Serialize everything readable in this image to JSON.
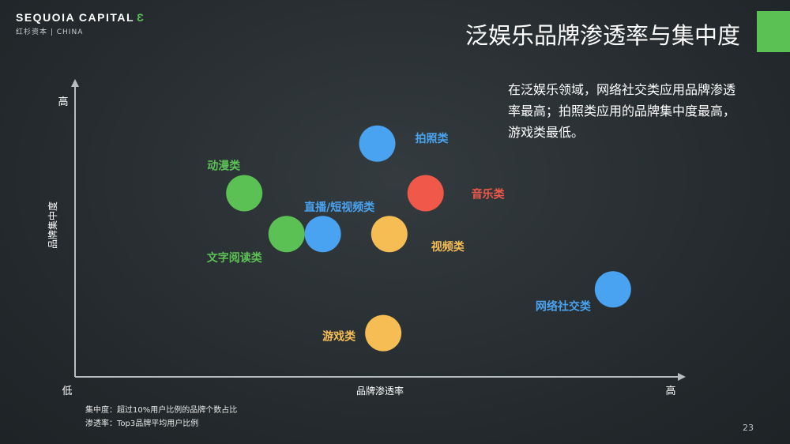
{
  "header": {
    "logo_name": "SEQUOIA CAPITAL",
    "logo_mark": "Ǝ",
    "logo_sub": "红杉资本 | CHINA",
    "title": "泛娱乐品牌渗透率与集中度"
  },
  "summary": "在泛娱乐领域，网络社交类应用品牌渗透率最高；拍照类应用的品牌集中度最高，游戏类最低。",
  "footnotes": [
    "集中度：超过10%用户比例的品牌个数占比",
    "渗透率：Top3品牌平均用户比例"
  ],
  "page_number": "23",
  "colors": {
    "green": "#5cc155",
    "blue": "#4aa3f0",
    "red": "#f0584a",
    "orange": "#f7bd55",
    "axis": "#b9bdbf",
    "accent": "#5cc155"
  },
  "chart_data": {
    "type": "scatter",
    "xlabel": "品牌渗透率",
    "ylabel": "品牌集中度",
    "x_low_label": "低",
    "x_high_label": "高",
    "y_high_label": "高",
    "xlim": [
      0,
      10
    ],
    "ylim": [
      0,
      10
    ],
    "grid": false,
    "points": [
      {
        "label": "拍照类",
        "x": 5.0,
        "y": 8.0,
        "color": "#4aa3f0",
        "label_side": "right-up"
      },
      {
        "label": "动漫类",
        "x": 2.8,
        "y": 6.3,
        "color": "#5cc155",
        "label_side": "above-left"
      },
      {
        "label": "音乐类",
        "x": 5.8,
        "y": 6.3,
        "color": "#f0584a",
        "label_side": "right"
      },
      {
        "label": "文字阅读类",
        "x": 3.5,
        "y": 4.9,
        "color": "#5cc155",
        "label_side": "below"
      },
      {
        "label": "直播/短视频类",
        "x": 4.1,
        "y": 4.9,
        "color": "#4aa3f0",
        "label_side": "above"
      },
      {
        "label": "视频类",
        "x": 5.2,
        "y": 4.9,
        "color": "#f7bd55",
        "label_side": "right-down"
      },
      {
        "label": "网络社交类",
        "x": 8.9,
        "y": 3.0,
        "color": "#4aa3f0",
        "label_side": "left-down"
      },
      {
        "label": "游戏类",
        "x": 5.1,
        "y": 1.5,
        "color": "#f7bd55",
        "label_side": "left"
      }
    ]
  }
}
